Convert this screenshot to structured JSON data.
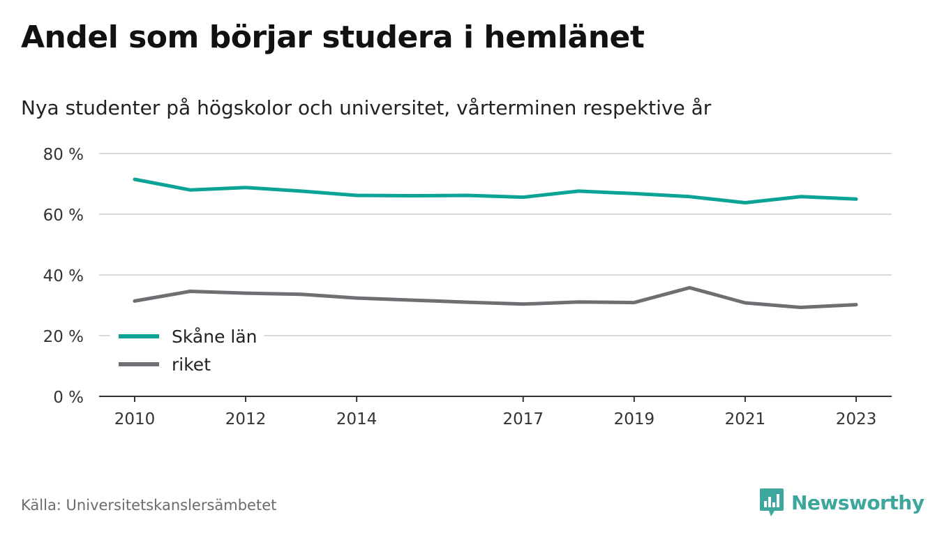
{
  "title": "Andel som börjar studera i hemlänet",
  "subtitle": "Nya studenter på högskolor och universitet, vårterminen respektive år",
  "source": "Källa: Universitetskanslersämbetet",
  "brand": {
    "name": "Newsworthy",
    "icon": "newsworthy-logo-icon",
    "color": "#3ea79d"
  },
  "chart_data": {
    "type": "line",
    "x": [
      2010,
      2011,
      2012,
      2013,
      2014,
      2015,
      2016,
      2017,
      2018,
      2019,
      2020,
      2021,
      2022,
      2023
    ],
    "x_tick_values": [
      2010,
      2012,
      2014,
      2017,
      2019,
      2021,
      2023
    ],
    "x_tick_labels": [
      "2010",
      "2012",
      "2014",
      "2017",
      "2019",
      "2021",
      "2023"
    ],
    "y_tick_values": [
      0,
      20,
      40,
      60,
      80
    ],
    "y_tick_labels": [
      "0 %",
      "20 %",
      "40 %",
      "60 %",
      "80 %"
    ],
    "ylim": [
      0,
      80
    ],
    "grid": true,
    "legend_position": "bottom-left",
    "series": [
      {
        "name": "Skåne län",
        "color": "#0aa396",
        "values": [
          71.5,
          68.0,
          68.8,
          67.6,
          66.2,
          66.1,
          66.2,
          65.6,
          67.6,
          66.8,
          65.8,
          63.8,
          65.8,
          65.0
        ]
      },
      {
        "name": "riket",
        "color": "#6e6e73",
        "values": [
          31.4,
          34.6,
          34.0,
          33.6,
          32.4,
          31.7,
          31.0,
          30.4,
          31.1,
          30.9,
          35.8,
          30.8,
          29.3,
          30.2
        ]
      }
    ]
  }
}
